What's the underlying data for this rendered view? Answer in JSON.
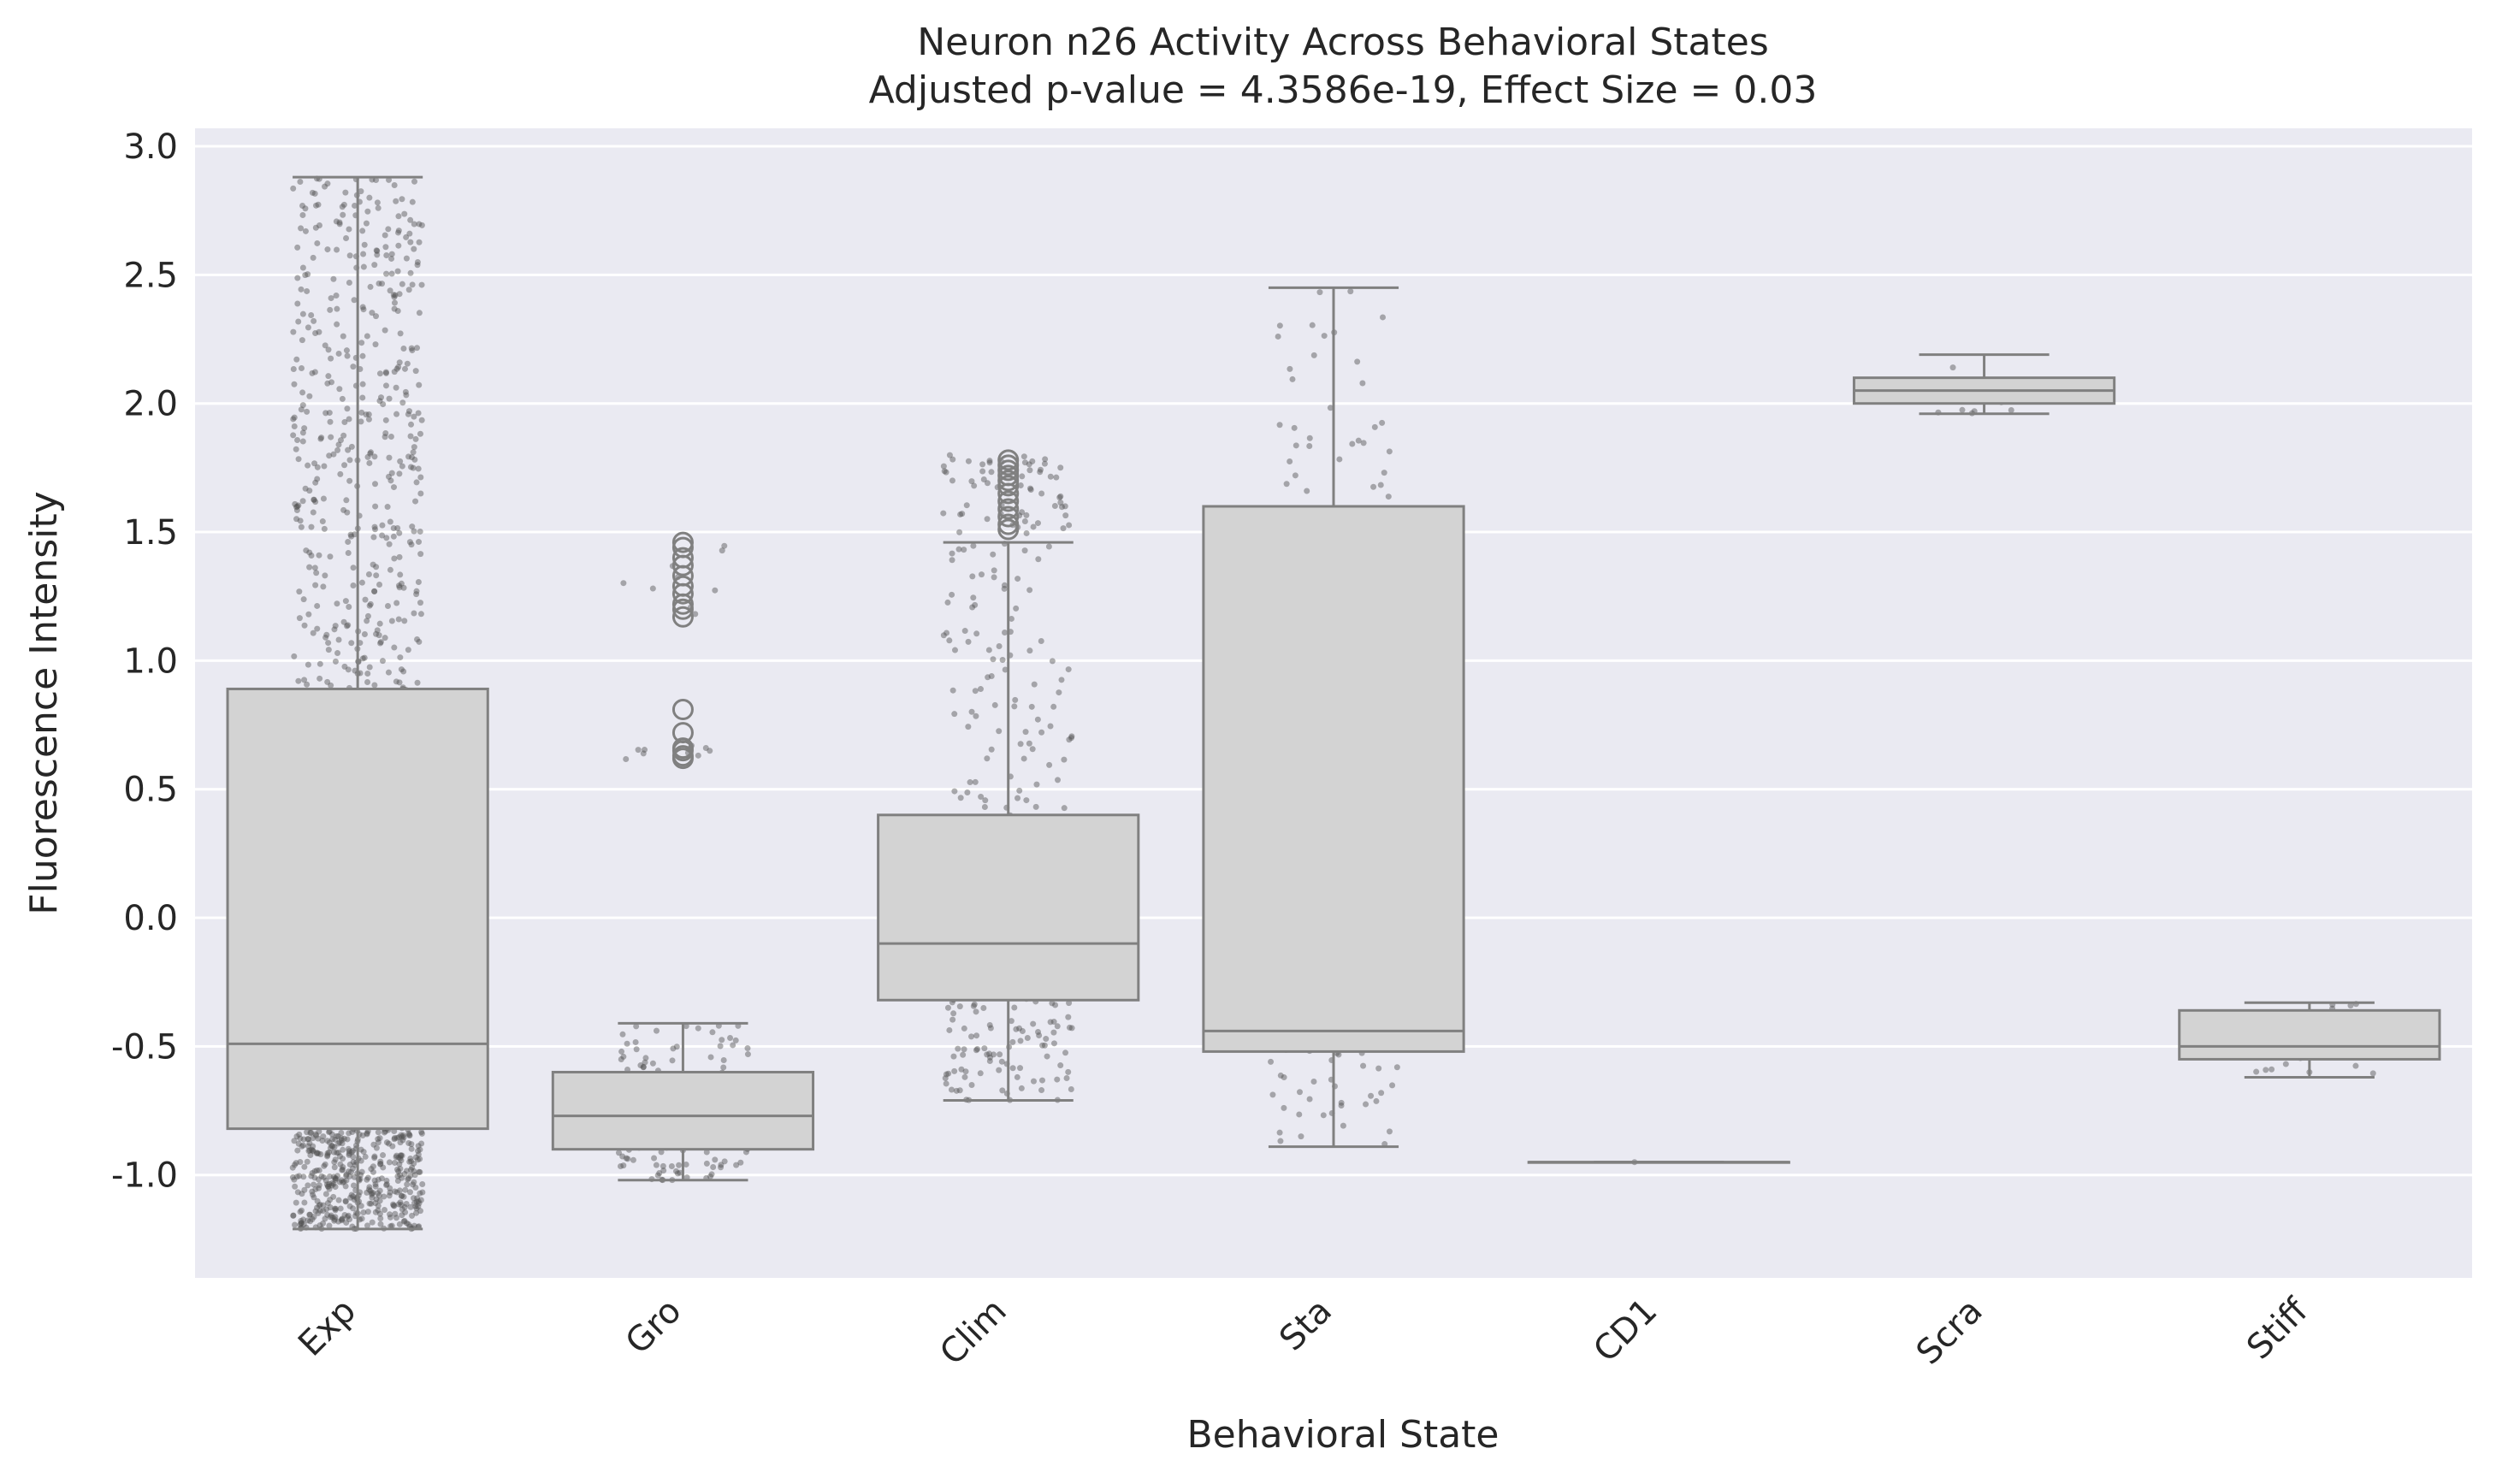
{
  "chart_data": {
    "type": "box",
    "title": "Neuron n26 Activity Across Behavioral States",
    "subtitle": "Adjusted p-value = 4.3586e-19, Effect Size = 0.03",
    "xlabel": "Behavioral State",
    "ylabel": "Fluorescence Intensity",
    "ylim": [
      -1.4,
      3.07
    ],
    "yticks": [
      3.0,
      2.5,
      2.0,
      1.5,
      1.0,
      0.5,
      0.0,
      -0.5,
      -1.0
    ],
    "ytick_labels": [
      "3.0",
      "2.5",
      "2.0",
      "1.5",
      "1.0",
      "0.5",
      "0.0",
      "-0.5",
      "-1.0"
    ],
    "categories": [
      "Exp",
      "Gro",
      "Clim",
      "Sta",
      "CD1",
      "Scra",
      "Stiff"
    ],
    "grid": true,
    "legend": "none",
    "colors": {
      "background": "#eaeaf2",
      "grid": "#ffffff",
      "box_fill": "#d3d3d3",
      "box_edge": "#808080",
      "points": "#505050"
    },
    "boxes": [
      {
        "category": "Exp",
        "whisker_low": -1.21,
        "q1": -0.82,
        "median": -0.49,
        "q3": 0.89,
        "whisker_high": 2.88,
        "outliers": []
      },
      {
        "category": "Gro",
        "whisker_low": -1.02,
        "q1": -0.9,
        "median": -0.77,
        "q3": -0.6,
        "whisker_high": -0.41,
        "outliers": [
          0.62,
          0.63,
          0.65,
          0.66,
          0.72,
          0.81,
          1.17,
          1.2,
          1.22,
          1.26,
          1.29,
          1.33,
          1.37,
          1.4,
          1.44,
          1.46
        ]
      },
      {
        "category": "Clim",
        "whisker_low": -0.71,
        "q1": -0.32,
        "median": -0.1,
        "q3": 0.4,
        "whisker_high": 1.46,
        "outliers": [
          1.51,
          1.53,
          1.56,
          1.59,
          1.62,
          1.65,
          1.68,
          1.7,
          1.72,
          1.74,
          1.76,
          1.78
        ]
      },
      {
        "category": "Sta",
        "whisker_low": -0.89,
        "q1": -0.52,
        "median": -0.44,
        "q3": 1.6,
        "whisker_high": 2.45,
        "outliers": []
      },
      {
        "category": "CD1",
        "whisker_low": -0.95,
        "q1": -0.95,
        "median": -0.95,
        "q3": -0.95,
        "whisker_high": -0.95,
        "outliers": []
      },
      {
        "category": "Scra",
        "whisker_low": 1.96,
        "q1": 2.0,
        "median": 2.05,
        "q3": 2.1,
        "whisker_high": 2.19,
        "outliers": []
      },
      {
        "category": "Stiff",
        "whisker_low": -0.62,
        "q1": -0.55,
        "median": -0.5,
        "q3": -0.36,
        "whisker_high": -0.33,
        "outliers": []
      }
    ]
  }
}
